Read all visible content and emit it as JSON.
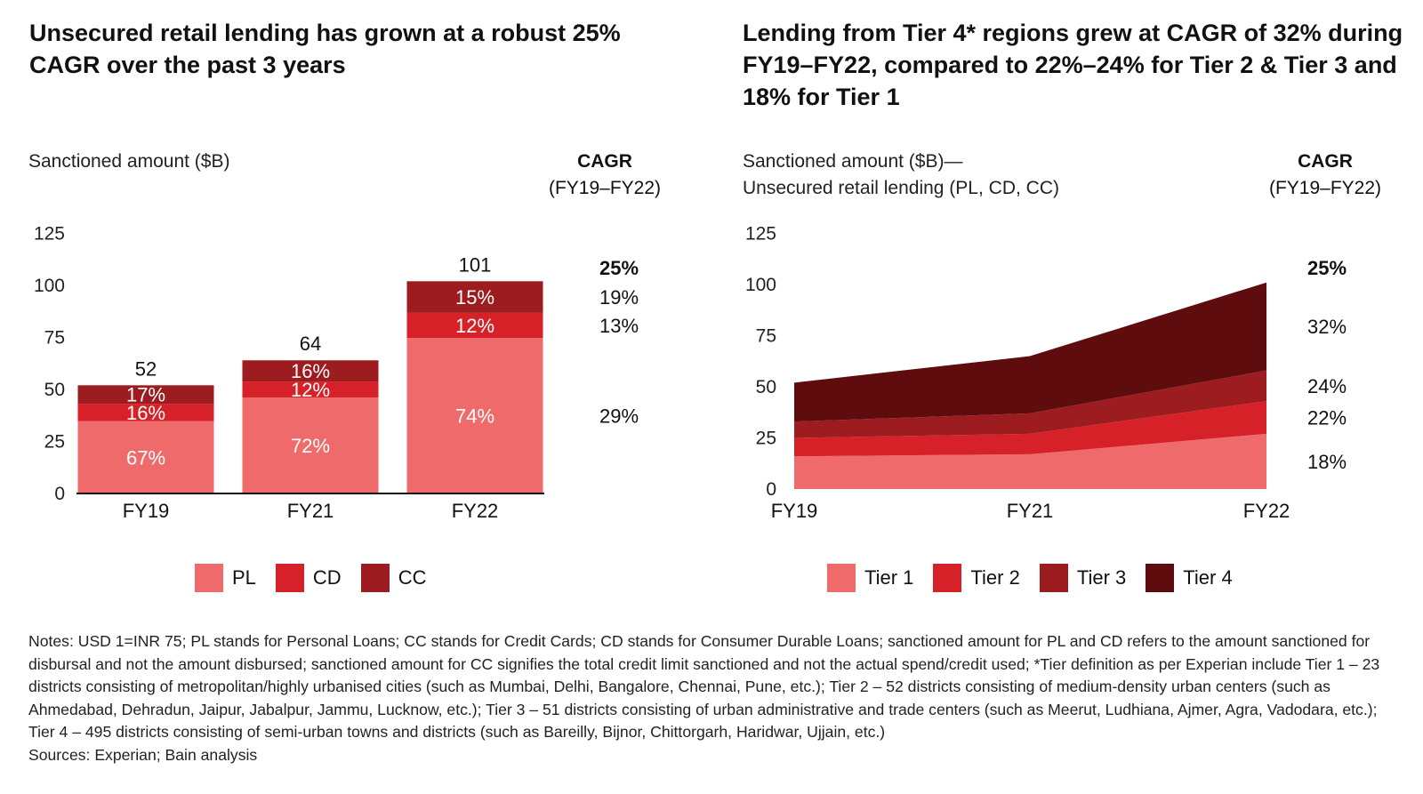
{
  "left": {
    "title": "Unsecured retail lending has grown at a robust 25% CAGR over the past 3 years",
    "ylabel": "Sanctioned amount ($B)",
    "cagr_title": "CAGR",
    "cagr_period": "(FY19–FY22)"
  },
  "right": {
    "title": "Lending from Tier 4* regions grew at CAGR of 32% during FY19–FY22, compared to 22%–24% for Tier 2 & Tier 3 and 18% for Tier 1",
    "ylabel_line1": "Sanctioned amount ($B)—",
    "ylabel_line2": "Unsecured retail lending (PL, CD, CC)",
    "cagr_title": "CAGR",
    "cagr_period": "(FY19–FY22)"
  },
  "colors": {
    "tier1": "#ef6a6a",
    "tier2": "#d62128",
    "tier3": "#9c1c1f",
    "tier4": "#5e0c0e"
  },
  "notes": "Notes: USD 1=INR 75; PL stands for Personal Loans; CC stands for Credit Cards; CD stands for Consumer Durable Loans; sanctioned amount for PL and CD refers to the amount sanctioned for disbursal and not the amount disbursed; sanctioned amount for CC signifies the total credit limit sanctioned and not the actual spend/credit used; *Tier definition as per Experian include Tier 1 – 23 districts consisting of metropolitan/highly urbanised cities (such as Mumbai, Delhi, Bangalore, Chennai, Pune, etc.); Tier 2 – 52 districts consisting of medium-density urban centers (such as Ahmedabad, Dehradun, Jaipur, Jabalpur, Jammu, Lucknow, etc.); Tier 3 – 51 districts consisting of urban administrative and trade centers (such as Meerut, Ludhiana, Ajmer, Agra, Vadodara, etc.); Tier 4 – 495 districts consisting of semi-urban towns and districts (such as Bareilly, Bijnor, Chittorgarh, Haridwar, Ujjain, etc.)",
  "sources": "Sources: Experian; Bain analysis",
  "chart_data": [
    {
      "type": "bar",
      "stacked": true,
      "categories": [
        "FY19",
        "FY21",
        "FY22"
      ],
      "totals": [
        52,
        64,
        101
      ],
      "series": [
        {
          "name": "PL",
          "color": "#ef6a6a",
          "share_labels": [
            "67%",
            "72%",
            "74%"
          ],
          "values": [
            34.8,
            46.1,
            74.7
          ],
          "cagr": "29%"
        },
        {
          "name": "CD",
          "color": "#d62128",
          "share_labels": [
            "16%",
            "12%",
            "12%"
          ],
          "values": [
            8.3,
            7.7,
            12.1
          ],
          "cagr": "13%"
        },
        {
          "name": "CC",
          "color": "#9c1c1f",
          "share_labels": [
            "17%",
            "16%",
            "15%"
          ],
          "values": [
            8.9,
            10.2,
            15.2
          ],
          "cagr": "19%"
        }
      ],
      "total_cagr": "25%",
      "yticks": [
        0,
        25,
        50,
        75,
        100,
        125
      ],
      "ylim": [
        0,
        125
      ],
      "legend": "bottom",
      "grid": false
    },
    {
      "type": "area",
      "stacked": true,
      "x": [
        "FY19",
        "FY21",
        "FY22"
      ],
      "series": [
        {
          "name": "Tier 1",
          "color": "#ef6a6a",
          "values": [
            16,
            17,
            27
          ],
          "cagr": "18%"
        },
        {
          "name": "Tier 2",
          "color": "#d62128",
          "values": [
            9,
            10,
            16
          ],
          "cagr": "22%"
        },
        {
          "name": "Tier 3",
          "color": "#9c1c1f",
          "values": [
            8,
            10,
            15
          ],
          "cagr": "24%"
        },
        {
          "name": "Tier 4",
          "color": "#5e0c0e",
          "values": [
            19,
            28,
            43
          ],
          "cagr": "32%"
        }
      ],
      "total_cagr": "25%",
      "yticks": [
        0,
        25,
        50,
        75,
        100,
        125
      ],
      "ylim": [
        0,
        125
      ],
      "legend": "bottom",
      "grid": false
    }
  ]
}
